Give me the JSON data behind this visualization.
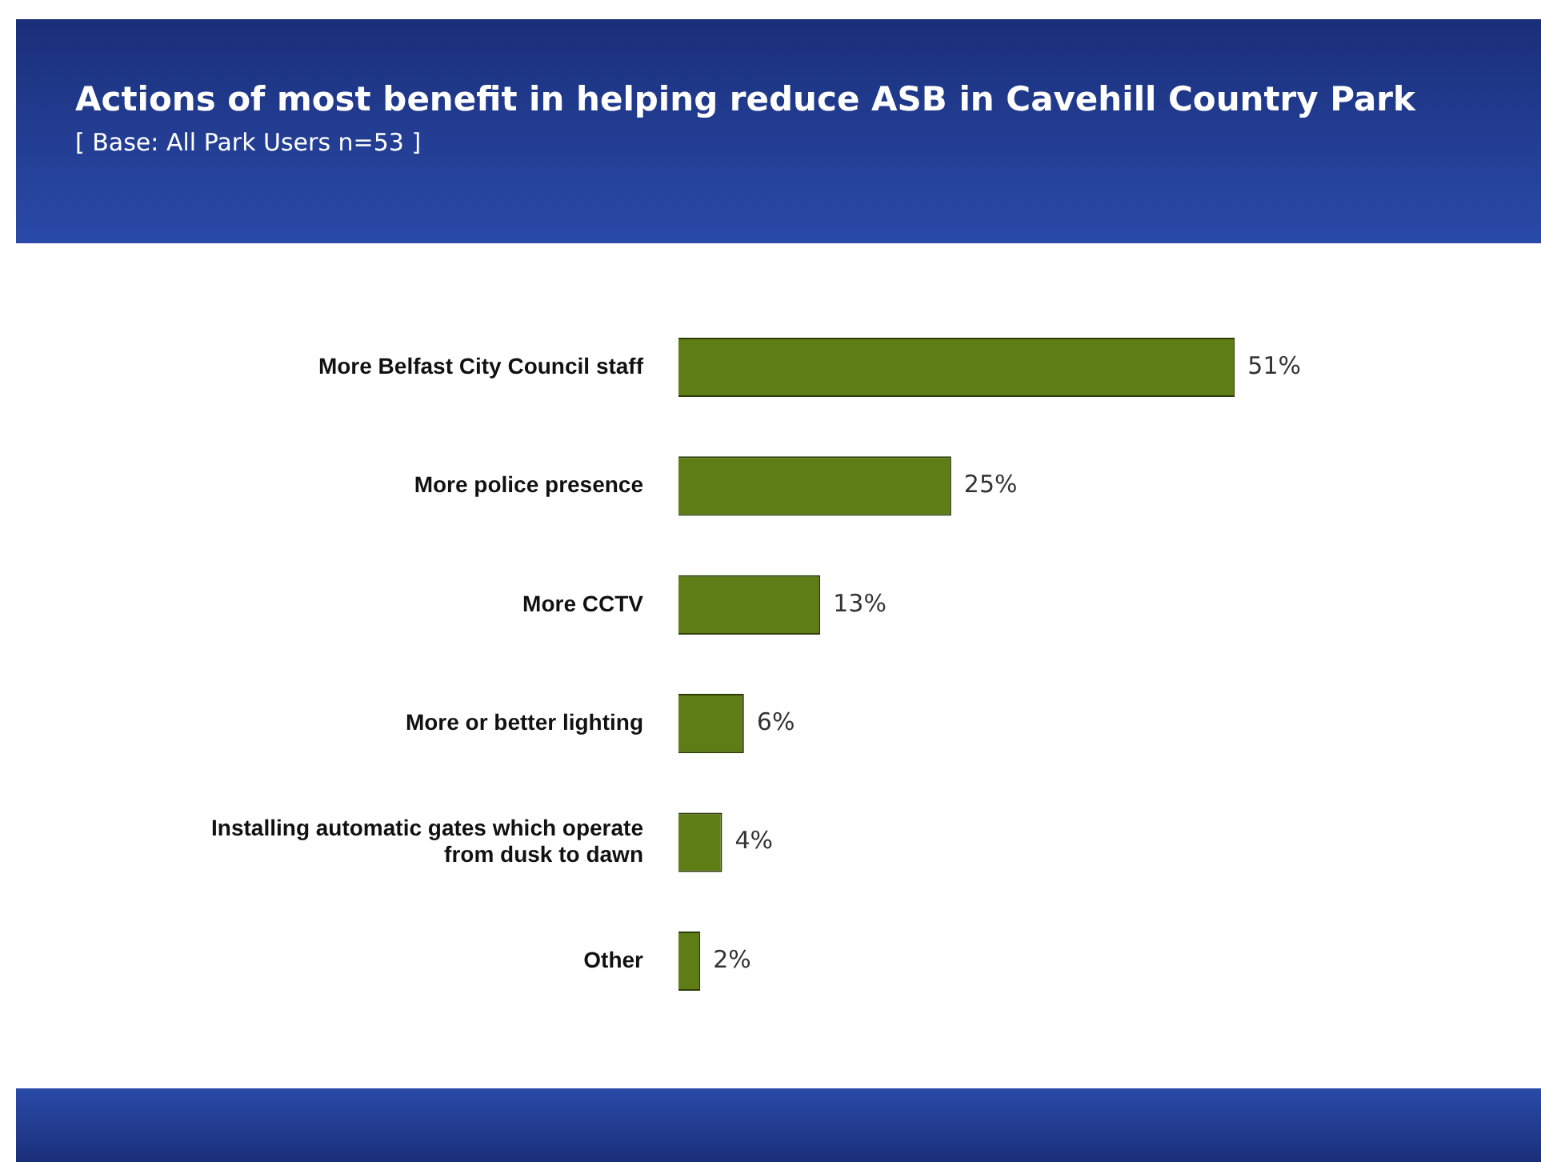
{
  "chart_data": {
    "type": "bar",
    "orientation": "horizontal",
    "title": "Actions of most benefit in helping reduce ASB in Cavehill Country Park",
    "subtitle": "[ Base: All Park Users n=53 ]",
    "categories": [
      "More Belfast City Council staff",
      "More police presence",
      "More CCTV",
      "More or better lighting",
      "Installing automatic gates which operate from dusk to dawn",
      "Other"
    ],
    "values": [
      51,
      25,
      13,
      6,
      4,
      2
    ],
    "value_labels": [
      "51%",
      "25%",
      "13%",
      "6%",
      "4%",
      "2%"
    ],
    "color": "#5e7d14"
  }
}
